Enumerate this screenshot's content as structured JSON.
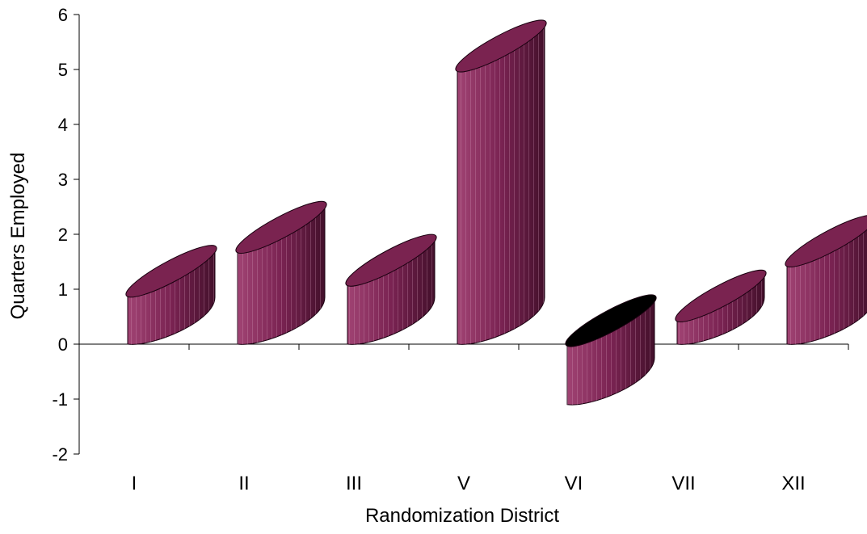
{
  "chart_data": {
    "type": "bar",
    "style": "3d-cylinder",
    "categories": [
      "I",
      "II",
      "III",
      "V",
      "VI",
      "VII",
      "XII"
    ],
    "values": [
      0.9,
      1.7,
      1.1,
      5.0,
      -1.1,
      0.45,
      1.45
    ],
    "xlabel": "Randomization District",
    "ylabel": "Quarters Employed",
    "ylim": [
      -2,
      6
    ],
    "yticks": [
      -2,
      -1,
      0,
      1,
      2,
      3,
      4,
      5,
      6
    ],
    "grid": false,
    "legend": "none",
    "colors": {
      "cylinder_front_light": "#9a3a6a",
      "cylinder_front_dark": "#4a1230",
      "cylinder_top": "#7a2350",
      "negative_top": "#000000",
      "outline": "#1a0010"
    }
  }
}
